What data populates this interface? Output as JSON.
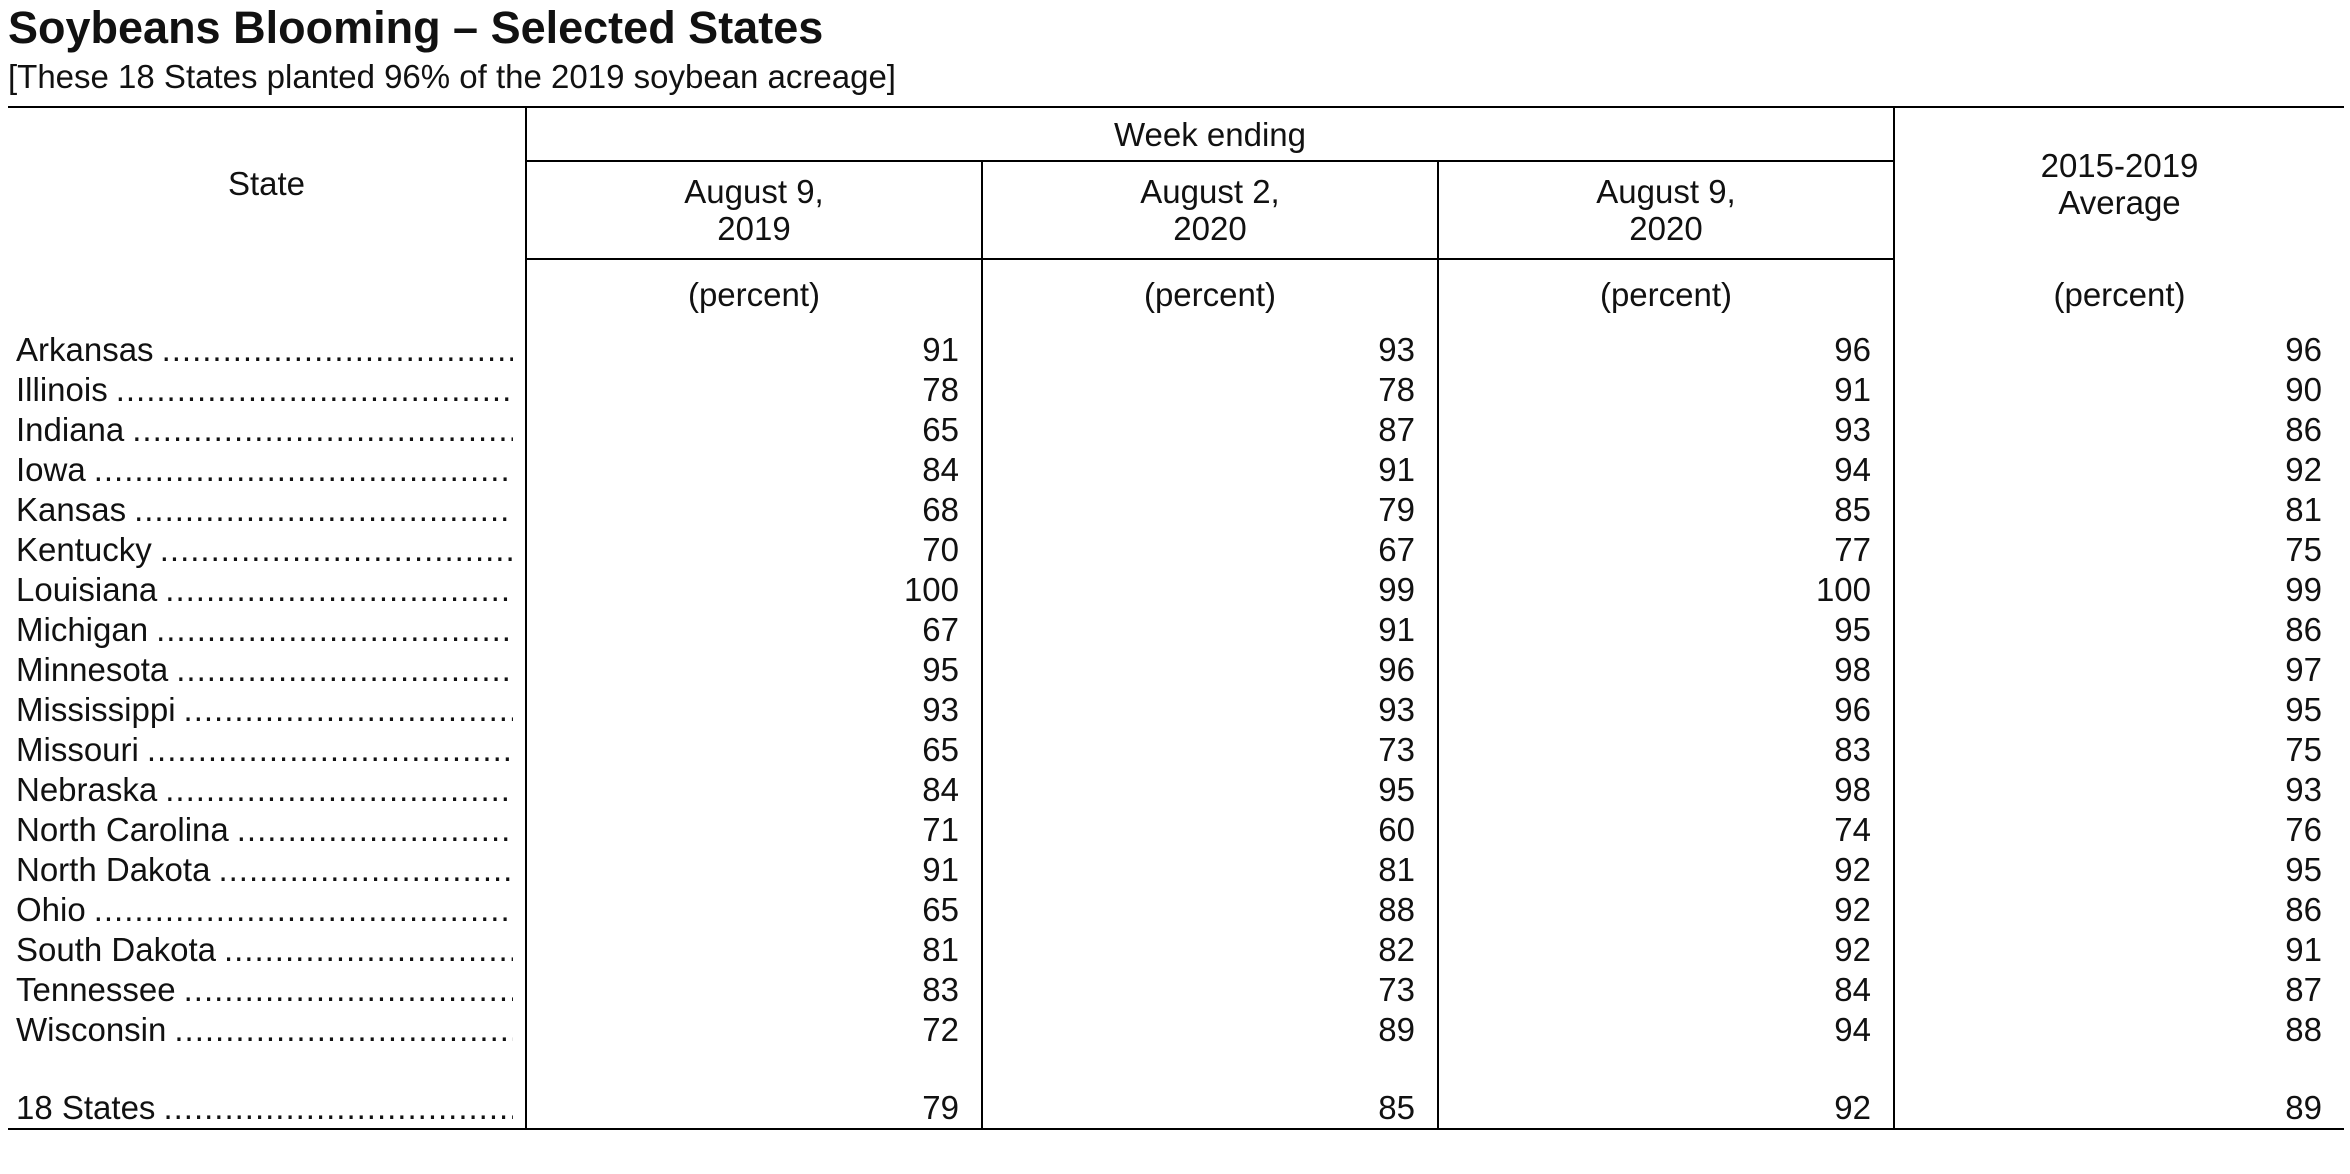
{
  "title": "Soybeans Blooming – Selected States",
  "subtitle": "[These 18 States planted 96% of the 2019 soybean acreage]",
  "table": {
    "state_header": "State",
    "week_header": "Week ending",
    "date_headers": [
      {
        "line1": "August 9,",
        "line2": "2019"
      },
      {
        "line1": "August 2,",
        "line2": "2020"
      },
      {
        "line1": "August 9,",
        "line2": "2020"
      }
    ],
    "avg_header": {
      "line1": "2015-2019",
      "line2": "Average"
    },
    "unit": "(percent)",
    "rows": [
      {
        "state": "Arkansas",
        "values": [
          "91",
          "93",
          "96",
          "96"
        ]
      },
      {
        "state": "Illinois",
        "values": [
          "78",
          "78",
          "91",
          "90"
        ]
      },
      {
        "state": "Indiana",
        "values": [
          "65",
          "87",
          "93",
          "86"
        ]
      },
      {
        "state": "Iowa",
        "values": [
          "84",
          "91",
          "94",
          "92"
        ]
      },
      {
        "state": "Kansas",
        "values": [
          "68",
          "79",
          "85",
          "81"
        ]
      },
      {
        "state": "Kentucky",
        "values": [
          "70",
          "67",
          "77",
          "75"
        ]
      },
      {
        "state": "Louisiana",
        "values": [
          "100",
          "99",
          "100",
          "99"
        ]
      },
      {
        "state": "Michigan",
        "values": [
          "67",
          "91",
          "95",
          "86"
        ]
      },
      {
        "state": "Minnesota",
        "values": [
          "95",
          "96",
          "98",
          "97"
        ]
      },
      {
        "state": "Mississippi",
        "values": [
          "93",
          "93",
          "96",
          "95"
        ]
      },
      {
        "state": "Missouri",
        "values": [
          "65",
          "73",
          "83",
          "75"
        ]
      },
      {
        "state": "Nebraska",
        "values": [
          "84",
          "95",
          "98",
          "93"
        ]
      },
      {
        "state": "North Carolina",
        "values": [
          "71",
          "60",
          "74",
          "76"
        ]
      },
      {
        "state": "North Dakota",
        "values": [
          "91",
          "81",
          "92",
          "95"
        ]
      },
      {
        "state": "Ohio",
        "values": [
          "65",
          "88",
          "92",
          "86"
        ]
      },
      {
        "state": "South Dakota",
        "values": [
          "81",
          "82",
          "92",
          "91"
        ]
      },
      {
        "state": "Tennessee",
        "values": [
          "83",
          "73",
          "84",
          "87"
        ]
      },
      {
        "state": "Wisconsin",
        "values": [
          "72",
          "89",
          "94",
          "88"
        ]
      }
    ],
    "total": {
      "state": "18 States",
      "values": [
        "79",
        "85",
        "92",
        "89"
      ]
    }
  }
}
